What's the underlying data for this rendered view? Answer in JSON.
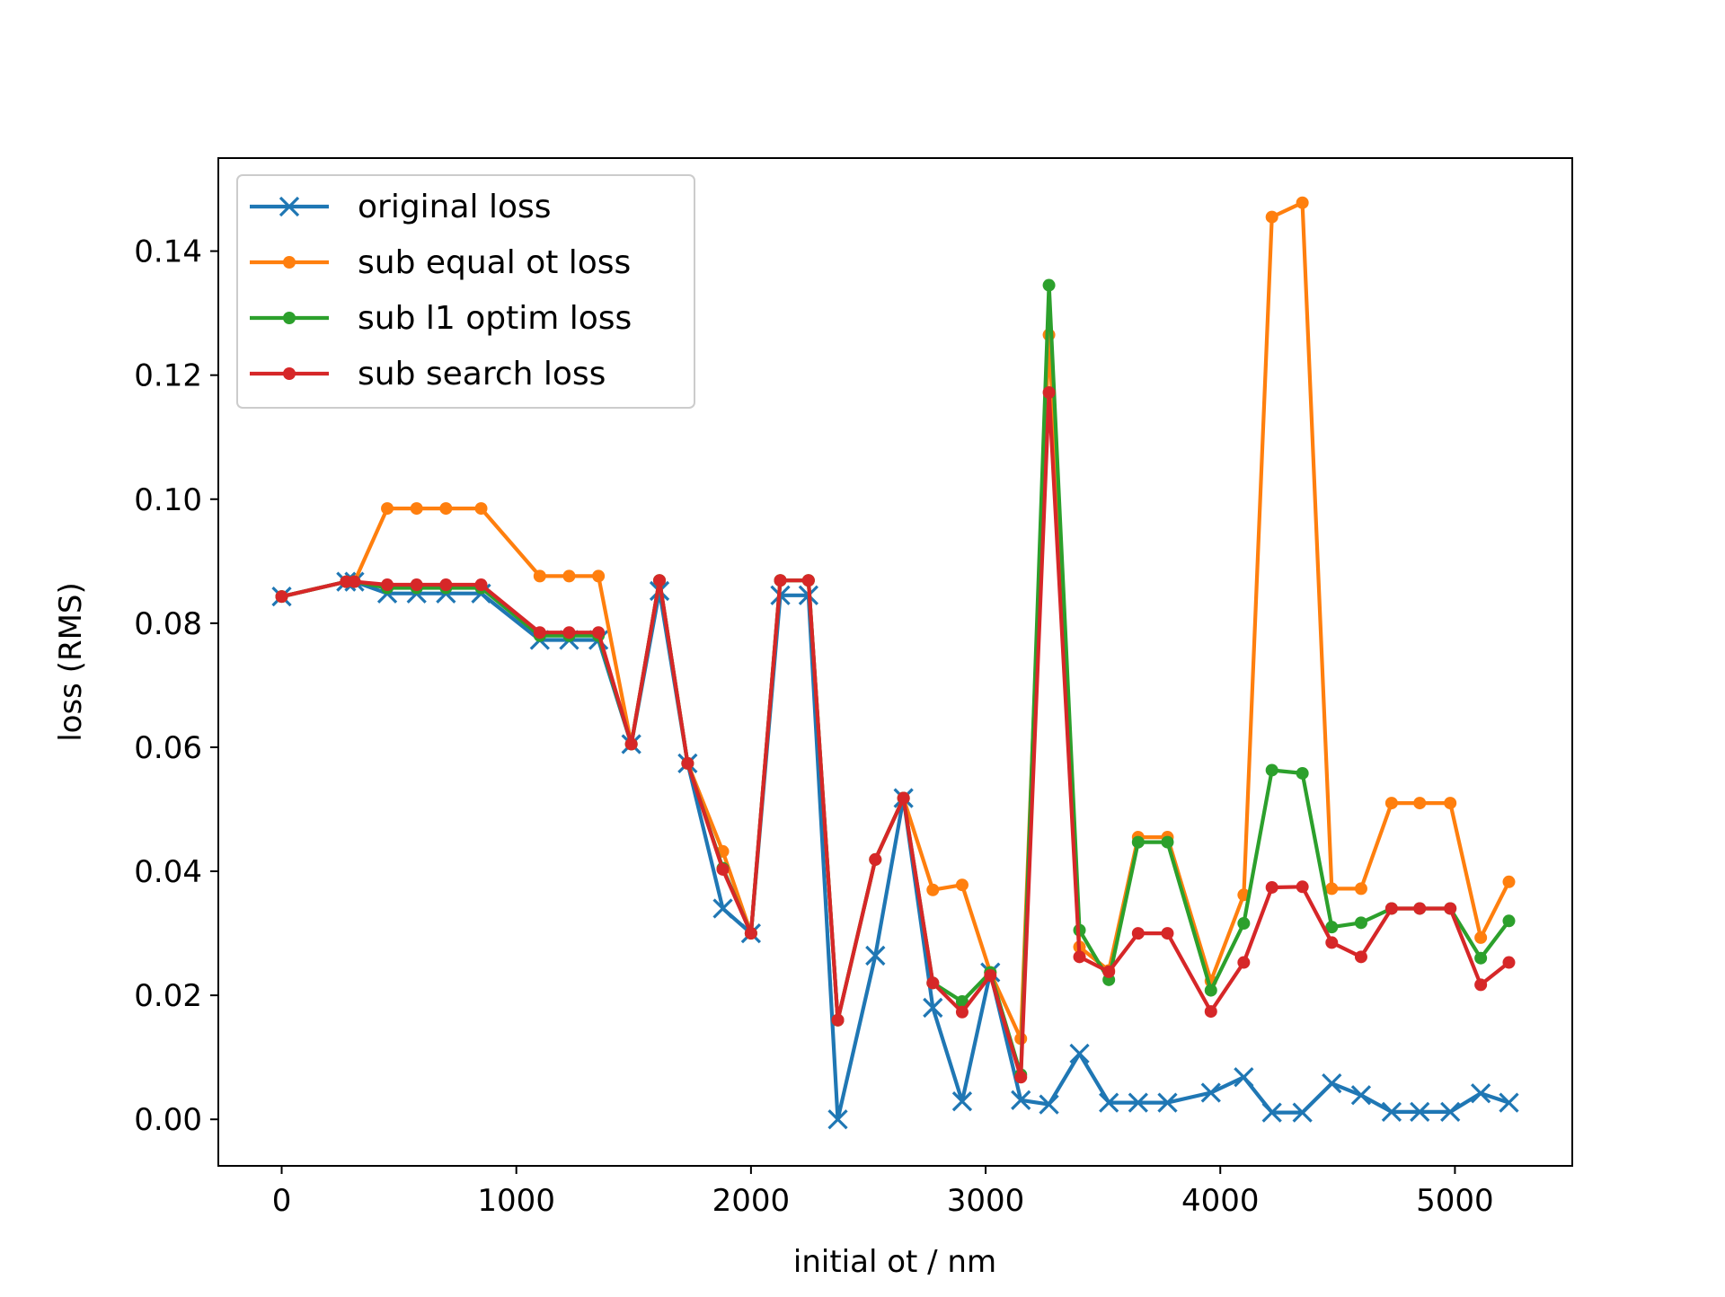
{
  "chart_data": {
    "type": "line",
    "title": "",
    "xlabel": "initial ot / nm",
    "ylabel": "loss (RMS)",
    "xlim": [
      -270,
      5500
    ],
    "ylim": [
      -0.0075,
      0.155
    ],
    "xticks": [
      0,
      1000,
      2000,
      3000,
      4000,
      5000
    ],
    "xtick_labels": [
      "0",
      "1000",
      "2000",
      "3000",
      "4000",
      "5000"
    ],
    "yticks": [
      0.0,
      0.02,
      0.04,
      0.06,
      0.08,
      0.1,
      0.12,
      0.14
    ],
    "ytick_labels": [
      "0.00",
      "0.02",
      "0.04",
      "0.06",
      "0.08",
      "0.10",
      "0.12",
      "0.14"
    ],
    "grid": false,
    "legend_position": "upper-left",
    "x": [
      0,
      275,
      310,
      450,
      575,
      700,
      850,
      1100,
      1225,
      1350,
      1490,
      1610,
      1730,
      1880,
      2000,
      2125,
      2245,
      2370,
      2530,
      2650,
      2775,
      2900,
      3020,
      3150,
      3270,
      3400,
      3525,
      3650,
      3775,
      3960,
      4100,
      4220,
      4350,
      4475,
      4600,
      4730,
      4850,
      4980,
      5110,
      5230
    ],
    "series": [
      {
        "name": "original loss",
        "color": "#1f77b4",
        "marker": "x",
        "values": [
          0.0843,
          0.0867,
          0.0867,
          0.0848,
          0.0848,
          0.0848,
          0.0848,
          0.0773,
          0.0773,
          0.0773,
          0.0605,
          0.0852,
          0.0574,
          0.034,
          0.03,
          0.0845,
          0.0845,
          0.0,
          0.0264,
          0.0518,
          0.018,
          0.0029,
          0.0237,
          0.0031,
          0.0024,
          0.0106,
          0.0027,
          0.0027,
          0.0027,
          0.0043,
          0.0068,
          0.0011,
          0.0011,
          0.0058,
          0.0039,
          0.0012,
          0.0012,
          0.0012,
          0.0042,
          0.0027
        ]
      },
      {
        "name": "sub equal ot loss",
        "color": "#ff7f0e",
        "marker": "o",
        "values": [
          0.0843,
          0.0867,
          0.0867,
          0.0985,
          0.0985,
          0.0985,
          0.0985,
          0.0876,
          0.0876,
          0.0876,
          0.0605,
          0.0869,
          0.0574,
          0.0432,
          0.03,
          0.0869,
          0.0869,
          0.016,
          0.0419,
          0.0518,
          0.037,
          0.0378,
          0.0237,
          0.013,
          0.1265,
          0.0278,
          0.024,
          0.0455,
          0.0455,
          0.0223,
          0.0362,
          0.1455,
          0.1478,
          0.0372,
          0.0372,
          0.051,
          0.051,
          0.051,
          0.0293,
          0.0383
        ]
      },
      {
        "name": "sub l1 optim loss",
        "color": "#2ca02c",
        "marker": "o",
        "values": [
          0.0843,
          0.0867,
          0.0867,
          0.0857,
          0.0857,
          0.0857,
          0.0857,
          0.078,
          0.078,
          0.078,
          0.0605,
          0.0869,
          0.0574,
          0.0405,
          0.03,
          0.0869,
          0.0869,
          0.016,
          0.0419,
          0.0518,
          0.022,
          0.019,
          0.0237,
          0.0072,
          0.1345,
          0.0305,
          0.0225,
          0.0447,
          0.0447,
          0.0208,
          0.0316,
          0.0563,
          0.0558,
          0.031,
          0.0317,
          0.034,
          0.034,
          0.034,
          0.026,
          0.032
        ]
      },
      {
        "name": "sub search loss",
        "color": "#d62728",
        "marker": "o",
        "values": [
          0.0843,
          0.0867,
          0.0867,
          0.0862,
          0.0862,
          0.0862,
          0.0862,
          0.0785,
          0.0785,
          0.0785,
          0.0605,
          0.0869,
          0.0574,
          0.0403,
          0.03,
          0.0869,
          0.0869,
          0.016,
          0.0419,
          0.0518,
          0.022,
          0.0173,
          0.0232,
          0.0068,
          0.1172,
          0.0262,
          0.0238,
          0.03,
          0.03,
          0.0174,
          0.0253,
          0.0374,
          0.0375,
          0.0285,
          0.0262,
          0.034,
          0.034,
          0.034,
          0.0217,
          0.0253
        ]
      }
    ]
  }
}
